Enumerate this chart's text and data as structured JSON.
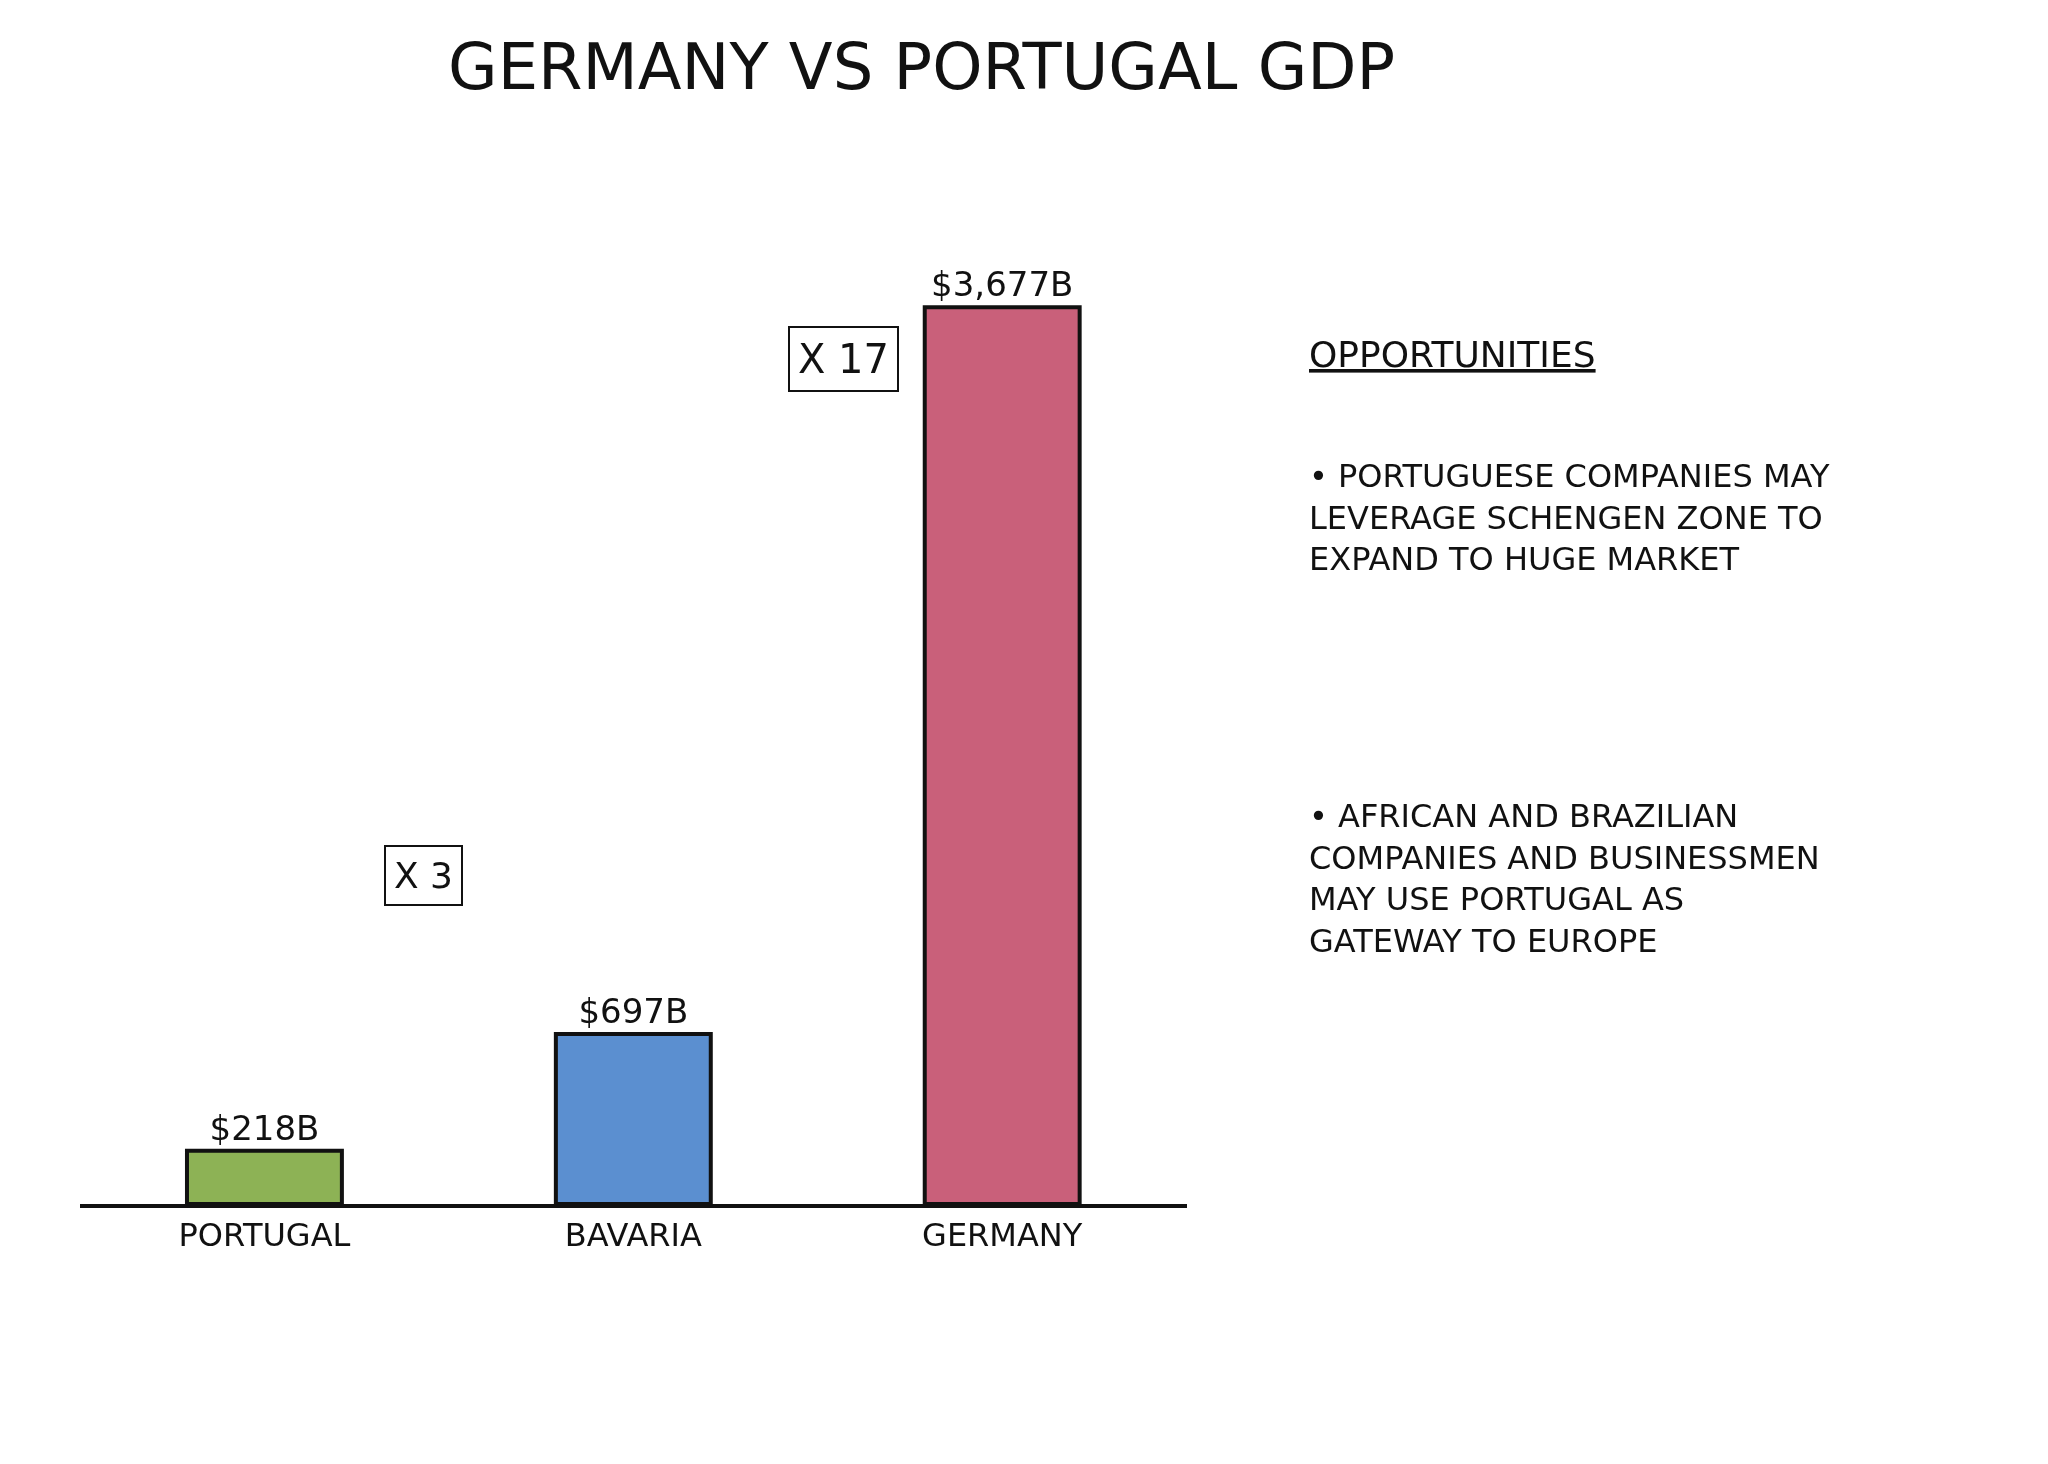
{
  "chart_data": {
    "type": "bar",
    "title": "GERMANY VS PORTUGAL GDP",
    "categories": [
      "PORTUGAL",
      "BAVARIA",
      "GERMANY"
    ],
    "values": [
      218,
      697,
      3677
    ],
    "colors": [
      "#8db255",
      "#5b8fd0",
      "#c9607a"
    ],
    "value_labels": [
      "$218B",
      "$697B",
      "$3,677B"
    ],
    "annotations": [
      "X 17",
      "X 3",
      "OPPORTUNITIES",
      "• PORTUGUESE COMPANIES MAY LEVERAGE SCHENGEN ZONE TO EXPAND TO HUGE MARKET",
      "• AFRICAN AND BRAZILIAN COMPANIES AND BUSINESSMEN MAY USE PORTUGAL AS GATEWAY TO EUROPE"
    ],
    "legend": false
  }
}
